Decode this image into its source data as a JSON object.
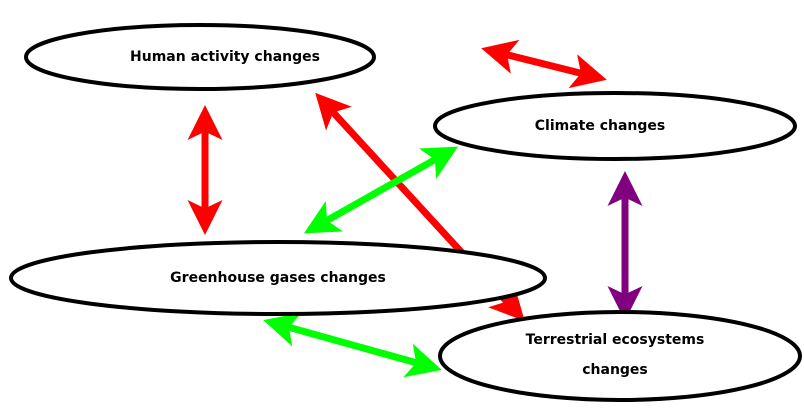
{
  "nodes": [
    {
      "label": "Human activity changes"
    },
    {
      "label": "Climate changes"
    },
    {
      "label": "Greenhouse gases changes"
    },
    {
      "label_lines": [
        "Terrestrial ecosystems",
        "changes"
      ]
    }
  ]
}
